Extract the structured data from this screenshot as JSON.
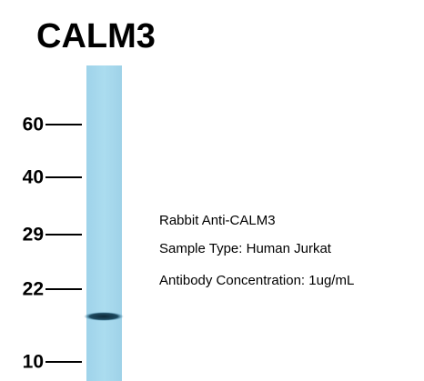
{
  "header": {
    "title": "CALM3"
  },
  "markers": [
    "60",
    "40",
    "29",
    "22",
    "10"
  ],
  "annotations": [
    "Rabbit Anti-CALM3",
    "Sample Type: Human Jurkat",
    "Antibody Concentration: 1ug/mL"
  ]
}
